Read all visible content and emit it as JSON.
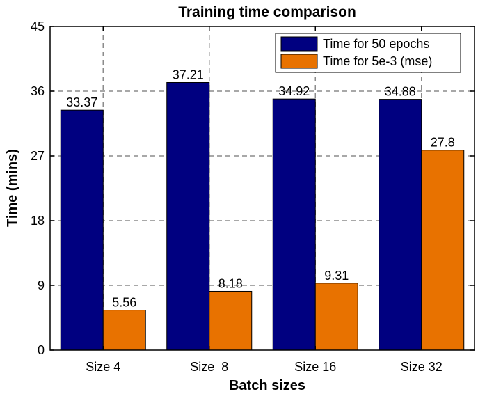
{
  "chart_data": {
    "type": "bar",
    "title": "Training time comparison",
    "xlabel": "Batch sizes",
    "ylabel": "Time (mins)",
    "categories": [
      "Size 4",
      "Size  8",
      "Size 16",
      "Size 32"
    ],
    "ylim": [
      0,
      45
    ],
    "yticks": [
      0,
      9,
      18,
      27,
      36,
      45
    ],
    "grid": true,
    "legend_position": "top-right",
    "series": [
      {
        "name": "Time for 50 epochs",
        "color": "#000080",
        "values": [
          33.37,
          37.21,
          34.92,
          34.88
        ],
        "labels": [
          "33.37",
          "37.21",
          "34.92",
          "34.88"
        ]
      },
      {
        "name": "Time for 5e-3 (mse)",
        "color": "#E87200",
        "values": [
          5.56,
          8.18,
          9.31,
          27.8
        ],
        "labels": [
          "5.56",
          "8.18",
          "9.31",
          "27.8"
        ]
      }
    ]
  }
}
